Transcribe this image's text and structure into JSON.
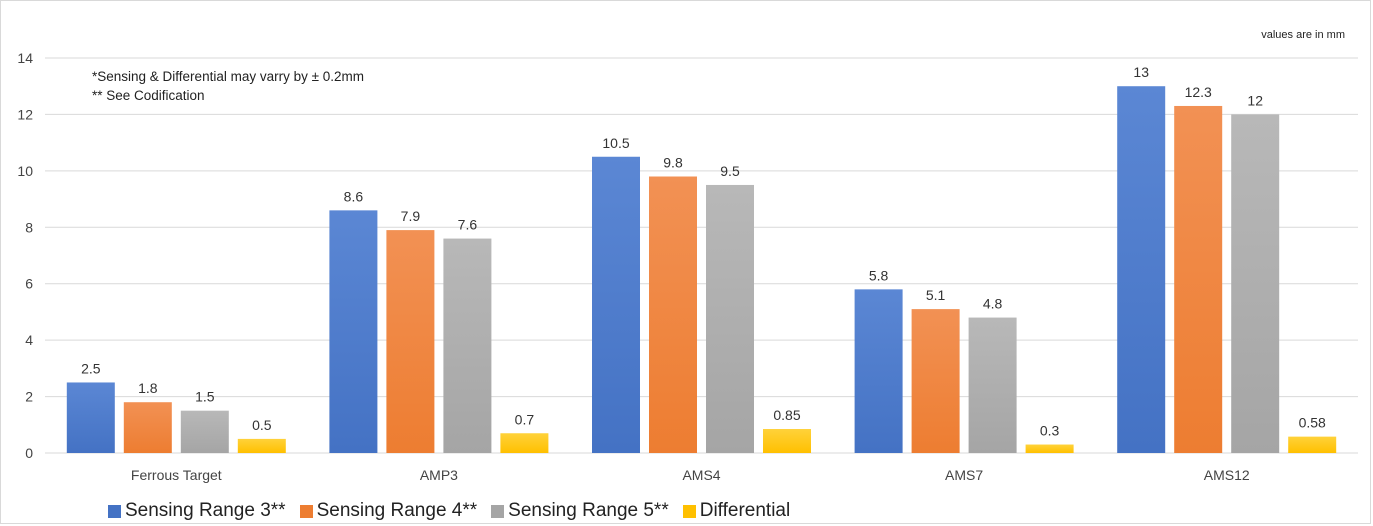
{
  "chart_data": {
    "type": "bar",
    "categories": [
      "Ferrous Target",
      "AMP3",
      "AMS4",
      "AMS7",
      "AMS12"
    ],
    "series": [
      {
        "name": "Sensing Range 3**",
        "values": [
          2.5,
          8.6,
          10.5,
          5.8,
          13
        ],
        "labels": [
          "2.5",
          "8.6",
          "10.5",
          "5.8",
          "13"
        ],
        "color": "#4472c4",
        "color_light": "#5b87d4"
      },
      {
        "name": "Sensing Range 4**",
        "values": [
          1.8,
          7.9,
          9.8,
          5.1,
          12.3
        ],
        "labels": [
          "1.8",
          "7.9",
          "9.8",
          "5.1",
          "12.3"
        ],
        "color": "#ed7d31",
        "color_light": "#f29154"
      },
      {
        "name": "Sensing Range 5**",
        "values": [
          1.5,
          7.6,
          9.5,
          4.8,
          12
        ],
        "labels": [
          "1.5",
          "7.6",
          "9.5",
          "4.8",
          "12"
        ],
        "color": "#a5a5a5",
        "color_light": "#b8b8b8"
      },
      {
        "name": "Differential",
        "values": [
          0.5,
          0.7,
          0.85,
          0.3,
          0.58
        ],
        "labels": [
          "0.5",
          "0.7",
          "0.85",
          "0.3",
          "0.58"
        ],
        "color": "#ffc000",
        "color_light": "#ffd23a"
      }
    ],
    "yticks": [
      "0",
      "2",
      "4",
      "6",
      "8",
      "10",
      "12",
      "14"
    ],
    "ylim": [
      0,
      14
    ],
    "grid": true,
    "legend_position": "bottom-left",
    "notes": [
      "*Sensing & Differential may varry by ± 0.2mm",
      "** See Codification"
    ],
    "units_note": "values are in mm"
  }
}
